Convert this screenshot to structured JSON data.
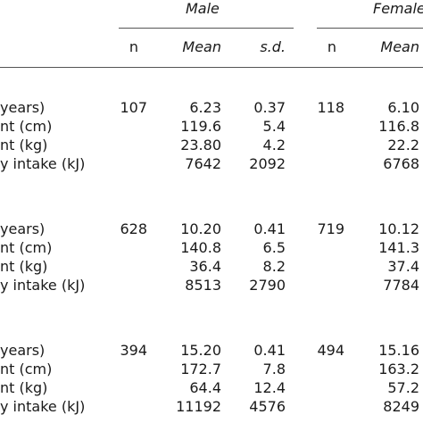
{
  "header": {
    "group_male": "Male",
    "group_female": "Female",
    "columns": [
      "n",
      "Mean",
      "s.d.",
      "n",
      "Mean"
    ]
  },
  "sections": [
    {
      "rows": [
        {
          "label": "years)",
          "male_n": "107",
          "male_mean": "6.23",
          "male_sd": "0.37",
          "female_n": "118",
          "female_mean": "6.10"
        },
        {
          "label": "nt (cm)",
          "male_n": "",
          "male_mean": "119.6",
          "male_sd": "5.4",
          "female_n": "",
          "female_mean": "116.8"
        },
        {
          "label": "nt (kg)",
          "male_n": "",
          "male_mean": "23.80",
          "male_sd": "4.2",
          "female_n": "",
          "female_mean": "22.2"
        },
        {
          "label": "y intake (kJ)",
          "male_n": "",
          "male_mean": "7642",
          "male_sd": "2092",
          "female_n": "",
          "female_mean": "6768"
        }
      ]
    },
    {
      "rows": [
        {
          "label": "years)",
          "male_n": "628",
          "male_mean": "10.20",
          "male_sd": "0.41",
          "female_n": "719",
          "female_mean": "10.12"
        },
        {
          "label": "nt (cm)",
          "male_n": "",
          "male_mean": "140.8",
          "male_sd": "6.5",
          "female_n": "",
          "female_mean": "141.3"
        },
        {
          "label": "nt (kg)",
          "male_n": "",
          "male_mean": "36.4",
          "male_sd": "8.2",
          "female_n": "",
          "female_mean": "37.4"
        },
        {
          "label": "y intake (kJ)",
          "male_n": "",
          "male_mean": "8513",
          "male_sd": "2790",
          "female_n": "",
          "female_mean": "7784"
        }
      ]
    },
    {
      "rows": [
        {
          "label": "years)",
          "male_n": "394",
          "male_mean": "15.20",
          "male_sd": "0.41",
          "female_n": "494",
          "female_mean": "15.16"
        },
        {
          "label": "nt (cm)",
          "male_n": "",
          "male_mean": "172.7",
          "male_sd": "7.8",
          "female_n": "",
          "female_mean": "163.2"
        },
        {
          "label": "nt (kg)",
          "male_n": "",
          "male_mean": "64.4",
          "male_sd": "12.4",
          "female_n": "",
          "female_mean": "57.2"
        },
        {
          "label": "y intake (kJ)",
          "male_n": "",
          "male_mean": "11192",
          "male_sd": "4576",
          "female_n": "",
          "female_mean": "8249"
        }
      ]
    }
  ]
}
